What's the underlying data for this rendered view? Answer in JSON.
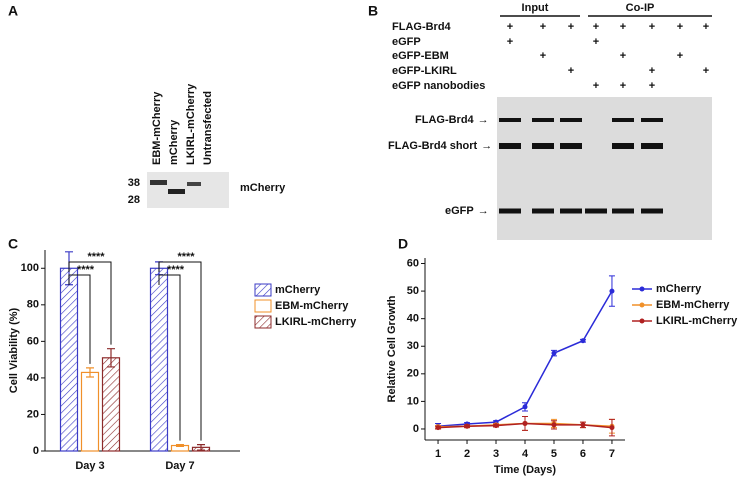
{
  "panels": [
    "A",
    "B",
    "C",
    "D"
  ],
  "blot_a": {
    "lanes": [
      "EBM-mCherry",
      "mCherry",
      "LKIRL-mCherry",
      "Untransfected"
    ],
    "markers": [
      "38",
      "28"
    ],
    "label": "mCherry"
  },
  "blot_b": {
    "groups": [
      "Input",
      "Co-IP"
    ],
    "rows": [
      {
        "label": "FLAG-Brd4",
        "cells": [
          "+",
          "+",
          "+",
          "+",
          "+",
          "+",
          "+",
          "+"
        ]
      },
      {
        "label": "eGFP",
        "cells": [
          "+",
          null,
          null,
          "+",
          null,
          null,
          null,
          null
        ]
      },
      {
        "label": "eGFP-EBM",
        "cells": [
          null,
          "+",
          null,
          null,
          "+",
          null,
          "+",
          null
        ]
      },
      {
        "label": "eGFP-LKIRL",
        "cells": [
          null,
          null,
          "+",
          null,
          null,
          "+",
          null,
          "+"
        ]
      },
      {
        "label": "eGFP nanobodies",
        "cells": [
          null,
          null,
          null,
          "+",
          "+",
          "+",
          null,
          null
        ]
      }
    ],
    "bands": [
      "FLAG-Brd4",
      "FLAG-Brd4 short",
      "eGFP"
    ]
  },
  "chart_data": [
    {
      "type": "bar",
      "ylabel": "Cell Viability (%)",
      "categories": [
        "Day 3",
        "Day 7"
      ],
      "series": [
        {
          "name": "mCherry",
          "color": "#3b3bc6",
          "hatch": true,
          "values": [
            100,
            100
          ],
          "errors": [
            9,
            3.5
          ]
        },
        {
          "name": "EBM-mCherry",
          "color": "#f0902a",
          "hatch": false,
          "values": [
            43,
            3
          ],
          "errors": [
            2.5,
            0.5
          ]
        },
        {
          "name": "LKIRL-mCherry",
          "color": "#8c2a2a",
          "hatch": true,
          "values": [
            51,
            2
          ],
          "errors": [
            5,
            1.5
          ]
        }
      ],
      "ylim": [
        0,
        110
      ],
      "yticks": [
        0,
        20,
        40,
        60,
        80,
        100
      ],
      "annotations": [
        "****",
        "****",
        "****",
        "****"
      ],
      "legend": "right"
    },
    {
      "type": "line",
      "xlabel": "Time (Days)",
      "ylabel": "Relative Cell Growth",
      "x": [
        1,
        2,
        3,
        4,
        5,
        6,
        7
      ],
      "series": [
        {
          "name": "mCherry",
          "color": "#2b2bd8",
          "values": [
            1,
            1.8,
            2.5,
            8,
            27.5,
            32,
            50
          ],
          "errors": [
            1,
            0.5,
            0.5,
            1.5,
            1,
            0.5,
            5.5
          ]
        },
        {
          "name": "EBM-mCherry",
          "color": "#f0902a",
          "values": [
            0.8,
            1,
            1.5,
            2,
            2,
            1.5,
            1
          ],
          "errors": [
            0.5,
            0.5,
            0.5,
            2.5,
            1.5,
            1,
            2.5
          ]
        },
        {
          "name": "LKIRL-mCherry",
          "color": "#b02020",
          "values": [
            0.5,
            1,
            1.2,
            2,
            1.5,
            1.5,
            0.5
          ],
          "errors": [
            0.5,
            0.5,
            0.5,
            2.5,
            1.5,
            1,
            3
          ]
        }
      ],
      "xlim": [
        0.55,
        7.45
      ],
      "xticks": [
        1,
        2,
        3,
        4,
        5,
        6,
        7
      ],
      "ylim": [
        -4,
        62
      ],
      "yticks": [
        0,
        10,
        20,
        30,
        40,
        50,
        60
      ],
      "legend": "right"
    }
  ]
}
